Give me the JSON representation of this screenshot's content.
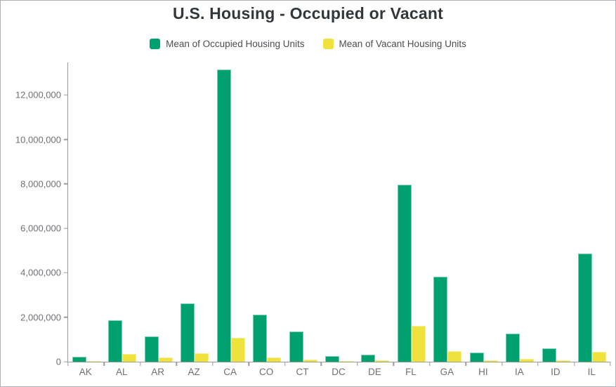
{
  "title": "U.S. Housing - Occupied or Vacant",
  "chart_data": {
    "type": "bar",
    "title": "U.S. Housing - Occupied or Vacant",
    "categories": [
      "AK",
      "AL",
      "AR",
      "AZ",
      "CA",
      "CO",
      "CT",
      "DC",
      "DE",
      "FL",
      "GA",
      "HI",
      "IA",
      "ID",
      "IL"
    ],
    "series": [
      {
        "name": "Mean of Occupied Housing Units",
        "color": "#00a06f",
        "edge_color": "#7bcfb2",
        "values": [
          220000,
          1860000,
          1130000,
          2630000,
          13150000,
          2110000,
          1350000,
          265000,
          320000,
          7950000,
          3810000,
          415000,
          1250000,
          590000,
          4880000
        ]
      },
      {
        "name": "Mean of Vacant Housing Units",
        "color": "#f0e23d",
        "edge_color": "#f5ee8e",
        "values": [
          40000,
          360000,
          180000,
          370000,
          1080000,
          185000,
          95000,
          30000,
          55000,
          1600000,
          460000,
          55000,
          130000,
          70000,
          430000
        ]
      }
    ],
    "xlabel": "",
    "ylabel": "",
    "y_ticks": [
      0,
      2000000,
      4000000,
      6000000,
      8000000,
      10000000,
      12000000
    ],
    "ylim": [
      0,
      13460000
    ],
    "grid": false,
    "legend_position": "top"
  },
  "colors": {
    "axis_line": "#9b9b9b",
    "tick_label": "#6e7075",
    "title_text": "#32373c",
    "legend_text": "#4a4e52",
    "background": "#ffffff",
    "frame_border": "#aeb2b6"
  }
}
